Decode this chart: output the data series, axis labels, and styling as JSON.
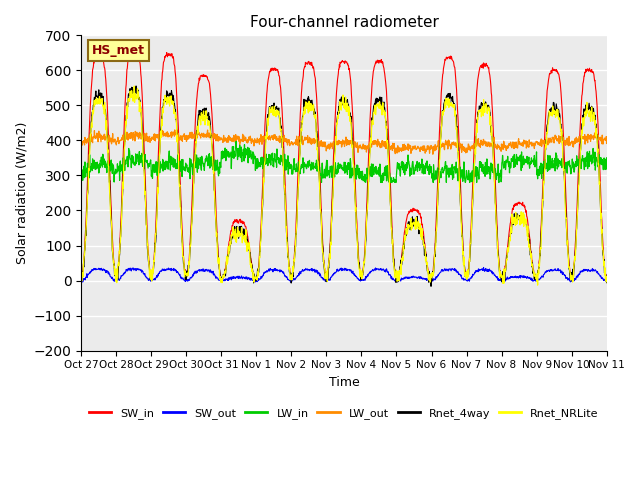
{
  "title": "Four-channel radiometer",
  "xlabel": "Time",
  "ylabel": "Solar radiation (W/m2)",
  "ylim": [
    -200,
    700
  ],
  "yticks": [
    -200,
    -100,
    0,
    100,
    200,
    300,
    400,
    500,
    600,
    700
  ],
  "annotation": "HS_met",
  "colors": {
    "SW_in": "#ff0000",
    "SW_out": "#0000ff",
    "LW_in": "#00cc00",
    "LW_out": "#ff8c00",
    "Rnet_4way": "#000000",
    "Rnet_NRLite": "#ffff00"
  },
  "axes_bg": "#ebebeb",
  "tick_labels": [
    "Oct 27",
    "Oct 28",
    "Oct 29",
    "Oct 30",
    "Oct 31",
    "Nov 1",
    "Nov 2",
    "Nov 3",
    "Nov 4",
    "Nov 5",
    "Nov 6",
    "Nov 7",
    "Nov 8",
    "Nov 9",
    "Nov 10",
    "Nov 11"
  ],
  "peaks_sw": [
    640,
    665,
    645,
    585,
    170,
    605,
    620,
    625,
    625,
    200,
    635,
    615,
    220,
    600,
    600
  ],
  "night_rnet": -85,
  "lw_out_base": 390,
  "lw_in_base": 340
}
